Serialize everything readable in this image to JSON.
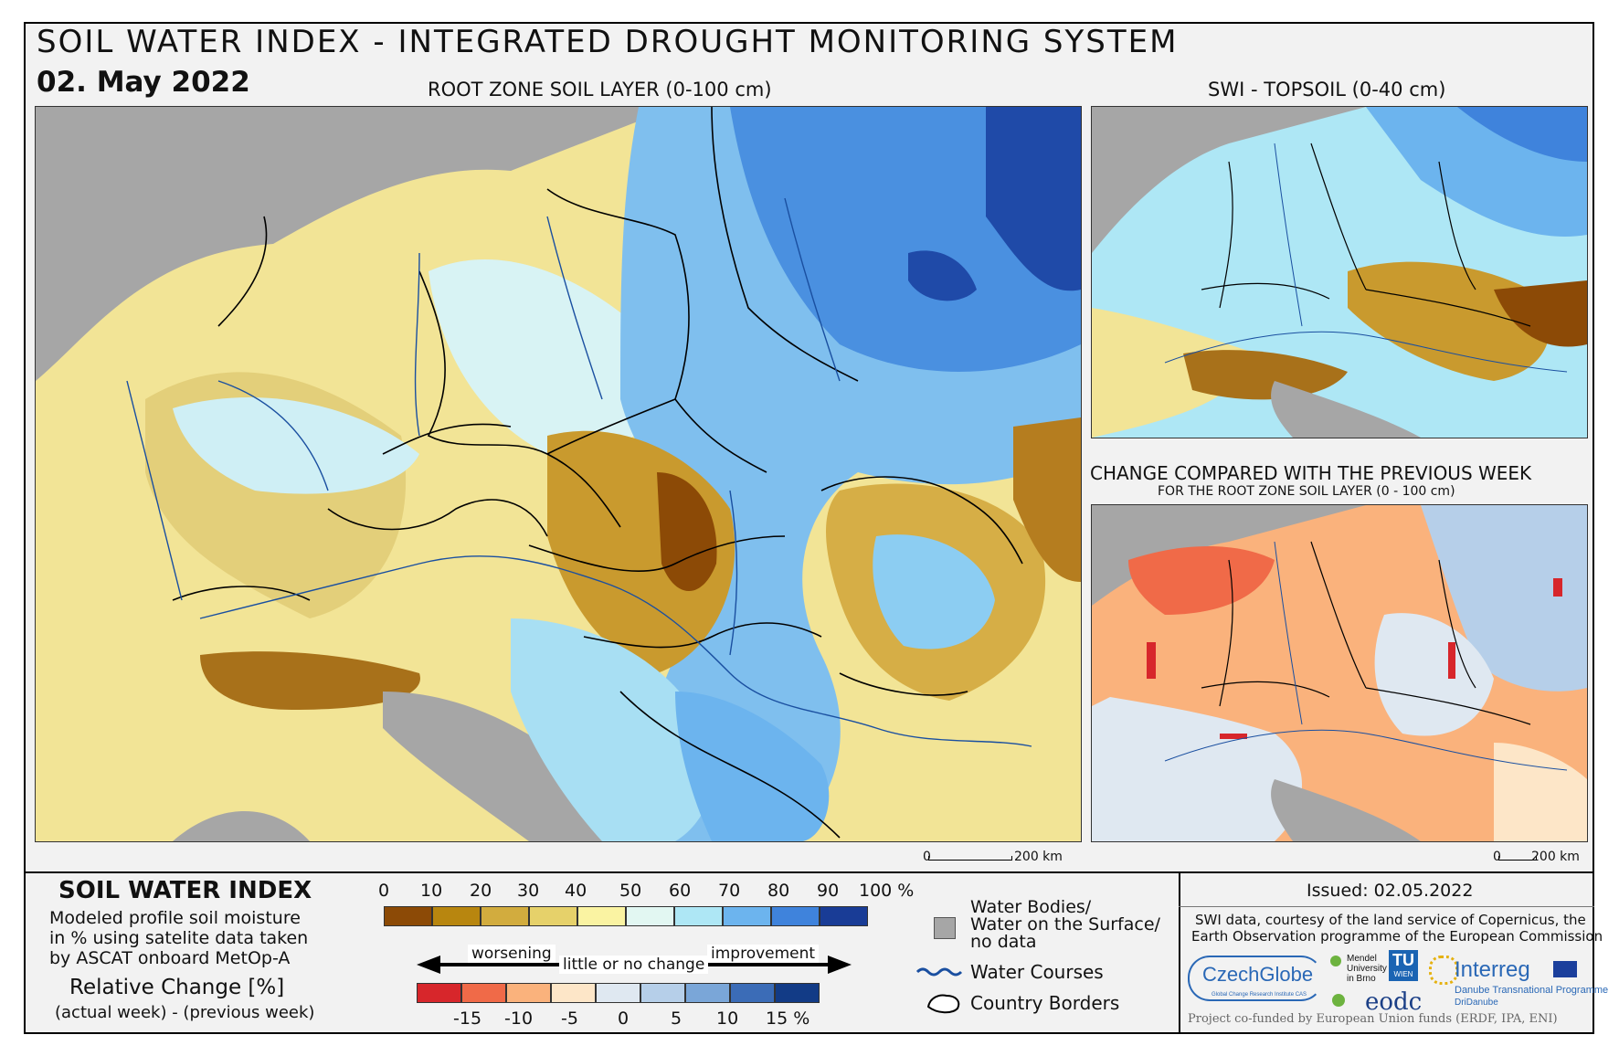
{
  "header": {
    "title": "SOIL WATER INDEX - INTEGRATED DROUGHT MONITORING SYSTEM",
    "date": "02. May 2022"
  },
  "maps": {
    "root_zone_title": "ROOT ZONE SOIL LAYER (0-100 cm)",
    "topsoil_title": "SWI - TOPSOIL (0-40 cm)",
    "change_title": "CHANGE COMPARED WITH THE PREVIOUS WEEK",
    "change_subtitle": "FOR THE ROOT ZONE SOIL LAYER (0 - 100 cm)",
    "scale_main": {
      "zero": "0",
      "distance": "200 km"
    },
    "scale_small": {
      "zero": "0",
      "distance": "200 km"
    }
  },
  "legend": {
    "swi_title": "SOIL WATER INDEX",
    "swi_desc_1": "Modeled profile soil moisture",
    "swi_desc_2": "in % using satelite data taken",
    "swi_desc_3": "by ASCAT onboard MetOp-A",
    "rel_title": "Relative Change [%]",
    "rel_desc": "(actual week) - (previous week)",
    "swi_ticks": [
      "0",
      "10",
      "20",
      "30",
      "40",
      "50",
      "60",
      "70",
      "80",
      "90",
      "100 %"
    ],
    "swi_colors": [
      "#8c4a06",
      "#b8860f",
      "#d2ac3e",
      "#e6d16a",
      "#faf3a2",
      "#e2f7f2",
      "#aee7f5",
      "#6cb4ee",
      "#3f83dc",
      "#193c96"
    ],
    "change_colors": [
      "#d7262b",
      "#f06a48",
      "#fab27c",
      "#fde6c8",
      "#dfe8f1",
      "#b6cfe9",
      "#7aa6d8",
      "#3b6cb7",
      "#123b86"
    ],
    "change_ticks": [
      "-15",
      "-10",
      "-5",
      "0",
      "5",
      "10",
      "15 %"
    ],
    "worsening": "worsening",
    "no_change": "little or no change",
    "improvement": "improvement",
    "water_bodies_1": "Water Bodies/",
    "water_bodies_2": "Water on the Surface/",
    "water_bodies_3": "no data",
    "water_courses": "Water Courses",
    "country_borders": "Country Borders"
  },
  "credits": {
    "issued": "Issued: 02.05.2022",
    "courtesy_1": "SWI data, courtesy of the land service of Copernicus, the",
    "courtesy_2": "Earth Observation programme of the European Commission",
    "czechglobe": "CzechGlobe",
    "czechglobe_sub": "Global Change Research Institute CAS",
    "mendel_1": "Mendel",
    "mendel_2": "University",
    "mendel_3": "in Brno",
    "tu": "TU",
    "tu_sub": "WIEN",
    "eodc": "eodc",
    "interreg": "Interreg",
    "interreg_sub": "Danube Transnational Programme",
    "dridanube": "DriDanube",
    "cofunded": "Project co-funded by European Union funds (ERDF, IPA, ENI)"
  }
}
